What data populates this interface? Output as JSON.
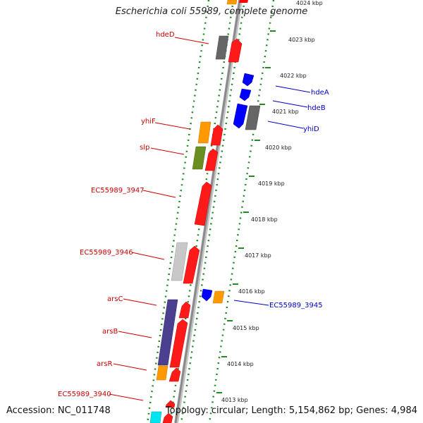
{
  "title": "Escherichia coli 55989, complete genome",
  "accession": "Accession: NC_011748",
  "topology": "Topology: circular; Length: 5,154,862 bp; Genes: 4,984",
  "colors": {
    "forward_label": "#cc0000",
    "reverse_label": "#0000cc",
    "track_dots": "#228b22",
    "backbone": "#909090"
  },
  "ticks": [
    {
      "kbp": 4024,
      "label": "4024 kbp"
    },
    {
      "kbp": 4023,
      "label": "4023 kbp"
    },
    {
      "kbp": 4022,
      "label": "4022 kbp"
    },
    {
      "kbp": 4021,
      "label": "4021 kbp"
    },
    {
      "kbp": 4020,
      "label": "4020 kbp"
    },
    {
      "kbp": 4019,
      "label": "4019 kbp"
    },
    {
      "kbp": 4018,
      "label": "4018 kbp"
    },
    {
      "kbp": 4017,
      "label": "4017 kbp"
    },
    {
      "kbp": 4016,
      "label": "4016 kbp"
    },
    {
      "kbp": 4015,
      "label": "4015 kbp"
    },
    {
      "kbp": 4014,
      "label": "4014 kbp"
    },
    {
      "kbp": 4013,
      "label": "4013 kbp"
    }
  ],
  "labels": [
    {
      "text": "hdeD",
      "strand": "forward"
    },
    {
      "text": "hdeA",
      "strand": "reverse"
    },
    {
      "text": "hdeB",
      "strand": "reverse"
    },
    {
      "text": "yhiD",
      "strand": "reverse"
    },
    {
      "text": "yhiF",
      "strand": "forward"
    },
    {
      "text": "slp",
      "strand": "forward"
    },
    {
      "text": "EC55989_3947",
      "strand": "forward"
    },
    {
      "text": "EC55989_3946",
      "strand": "forward"
    },
    {
      "text": "EC55989_3945",
      "strand": "reverse"
    },
    {
      "text": "arsC",
      "strand": "forward"
    },
    {
      "text": "arsB",
      "strand": "forward"
    },
    {
      "text": "arsR",
      "strand": "forward"
    },
    {
      "text": "EC55989_3940",
      "strand": "forward"
    }
  ]
}
